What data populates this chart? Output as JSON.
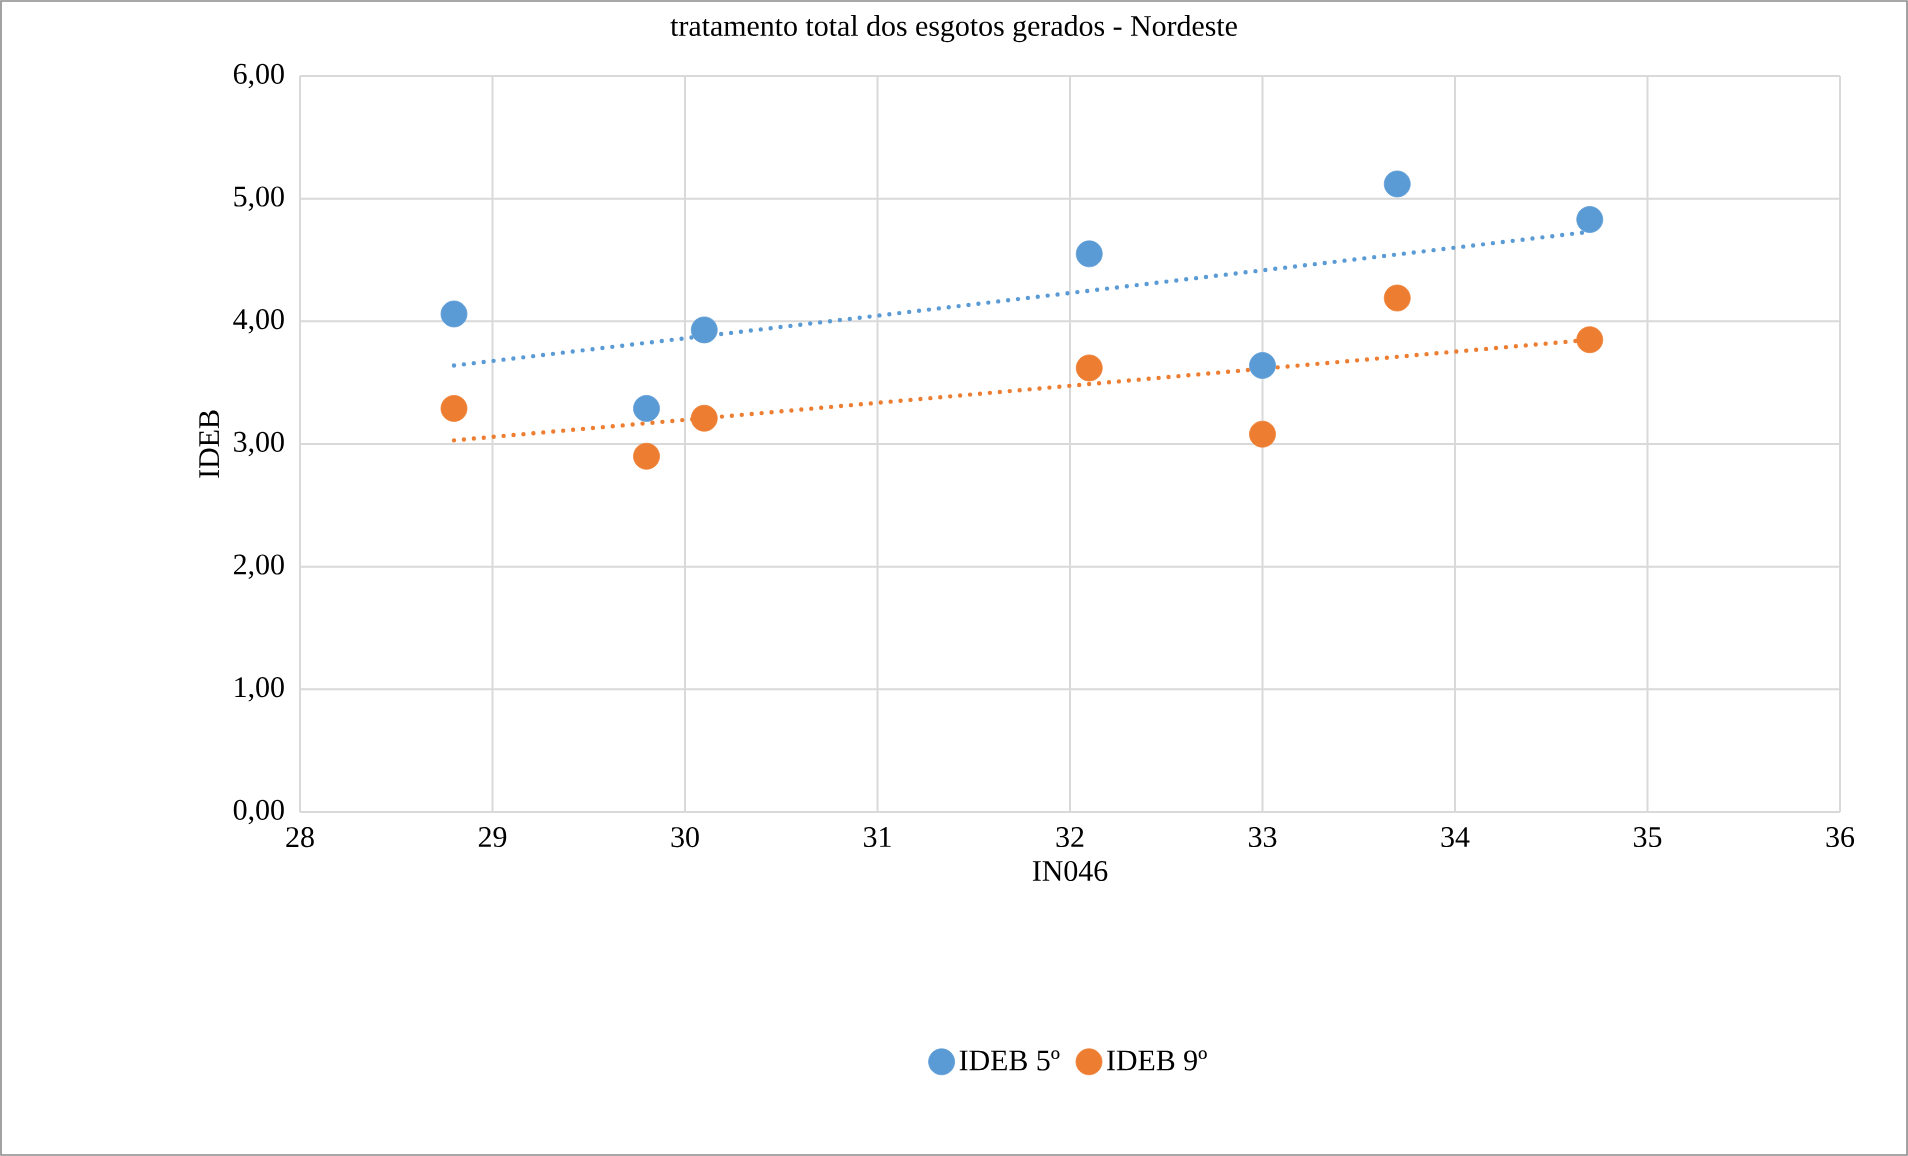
{
  "chart_data": {
    "type": "scatter",
    "title": "tratamento total dos esgotos gerados - Nordeste",
    "xlabel": "IN046",
    "ylabel": "IDEB",
    "series": [
      {
        "name": "IDEB 5º",
        "marker": "circle",
        "color": "#5b9bd5",
        "x": [
          28.8,
          29.8,
          30.1,
          32.1,
          33.0,
          33.7,
          34.7
        ],
        "values": [
          4.06,
          3.29,
          3.93,
          4.55,
          3.64,
          5.12,
          4.83
        ]
      },
      {
        "name": "IDEB 9º",
        "marker": "circle",
        "color": "#ed7d31",
        "x": [
          28.8,
          29.8,
          30.1,
          32.1,
          33.0,
          33.7,
          34.7
        ],
        "values": [
          3.29,
          2.9,
          3.21,
          3.62,
          3.08,
          4.19,
          3.85
        ]
      },
      {
        "type": "line",
        "marker": "none",
        "line_style": "dotted",
        "color": "#5b9bd5",
        "x": [
          28.8,
          34.7
        ],
        "values": [
          3.64,
          4.73
        ]
      },
      {
        "type": "line",
        "marker": "none",
        "line_style": "dotted",
        "color": "#ed7d31",
        "x": [
          28.8,
          34.7
        ],
        "values": [
          3.03,
          3.85
        ]
      }
    ],
    "xlim": [
      28,
      36
    ],
    "xticks": [
      28,
      29,
      30,
      31,
      32,
      33,
      34,
      35,
      36
    ],
    "ylim": [
      0,
      6
    ],
    "yticks": [
      {
        "value": 0,
        "label": "0,00"
      },
      {
        "value": 1,
        "label": "1,00"
      },
      {
        "value": 2,
        "label": "2,00"
      },
      {
        "value": 3,
        "label": "3,00"
      },
      {
        "value": 4,
        "label": "4,00"
      },
      {
        "value": 5,
        "label": "5,00"
      },
      {
        "value": 6,
        "label": "6,00"
      }
    ],
    "grid": true,
    "legend": "bottom"
  }
}
